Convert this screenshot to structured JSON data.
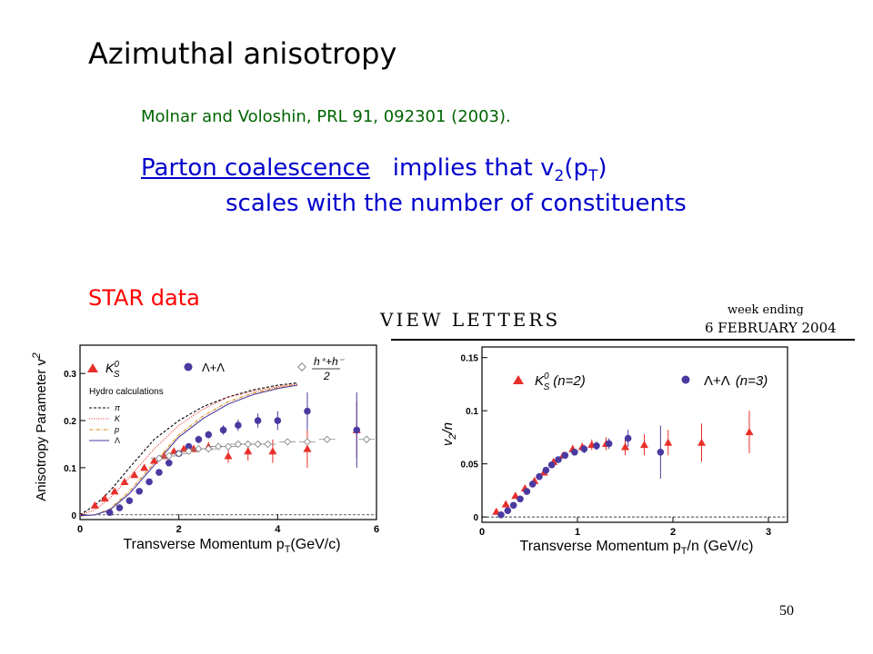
{
  "slide": {
    "title": "Azimuthal anisotropy",
    "reference": "Molnar and Voloshin, PRL 91, 092301 (2003).",
    "link_text": "Parton coalescence",
    "line1_rest": "implies that v",
    "sub_2": "2",
    "p_open": "(p",
    "sub_T": "T",
    "p_close": ")",
    "line2": "scales with the number of constituents",
    "star_label": "STAR data",
    "page_number": "50"
  },
  "journal_header": {
    "name": "VIEW LETTERS",
    "week_ending": "week ending",
    "date": "6 FEBRUARY 2004"
  },
  "colors": {
    "kaon": "#e8302a",
    "lambda": "#4a3aa0",
    "charged": "#888888",
    "title": "#000000",
    "reference": "#006400",
    "text_blue": "#0000cc",
    "star": "#ff0000"
  },
  "chart_data": [
    {
      "type": "scatter",
      "ylabel": "Anisotropy Parameter v",
      "ylabel_sub": "2",
      "xlabel": "Transverse Momentum p",
      "xlabel_sub": "T",
      "xlabel_unit": "(GeV/c)",
      "xlim": [
        0,
        6
      ],
      "ylim": [
        -0.01,
        0.36
      ],
      "xticks": [
        0,
        2,
        4,
        6
      ],
      "yticks": [
        0,
        0.1,
        0.2,
        0.3
      ],
      "ytick_labels": [
        "0",
        "0.1",
        "0.2",
        "0.3"
      ],
      "legend": {
        "kaon": "K",
        "kaon_sup": "0",
        "kaon_sub": "S",
        "lambda": "Λ+Λ",
        "charged": "h⁺+h⁻",
        "charged_den": "2",
        "hydro_title": "Hydro calculations",
        "hydro": [
          "π",
          "K",
          "p",
          "Λ"
        ]
      },
      "series": [
        {
          "name": "K0S",
          "marker": "triangle",
          "x": [
            0.3,
            0.5,
            0.7,
            0.9,
            1.1,
            1.3,
            1.5,
            1.7,
            1.9,
            2.1,
            2.3,
            2.6,
            3.0,
            3.4,
            3.9,
            4.6,
            5.6
          ],
          "y": [
            0.02,
            0.035,
            0.05,
            0.07,
            0.085,
            0.1,
            0.115,
            0.125,
            0.135,
            0.14,
            0.14,
            0.145,
            0.125,
            0.135,
            0.135,
            0.14,
            0.18
          ],
          "err": [
            0.004,
            0.004,
            0.004,
            0.005,
            0.005,
            0.005,
            0.005,
            0.006,
            0.006,
            0.007,
            0.008,
            0.01,
            0.015,
            0.02,
            0.025,
            0.04,
            0.06
          ]
        },
        {
          "name": "Lambda",
          "marker": "circle",
          "x": [
            0.6,
            0.8,
            1.0,
            1.2,
            1.4,
            1.6,
            1.8,
            2.0,
            2.2,
            2.4,
            2.6,
            2.9,
            3.2,
            3.6,
            4.0,
            4.6,
            5.6
          ],
          "y": [
            0.005,
            0.015,
            0.03,
            0.05,
            0.07,
            0.09,
            0.11,
            0.13,
            0.145,
            0.16,
            0.17,
            0.18,
            0.19,
            0.2,
            0.2,
            0.22,
            0.18
          ],
          "err": [
            0.004,
            0.004,
            0.004,
            0.005,
            0.005,
            0.005,
            0.006,
            0.006,
            0.007,
            0.008,
            0.008,
            0.01,
            0.012,
            0.015,
            0.02,
            0.04,
            0.08
          ]
        },
        {
          "name": "h++h-",
          "marker": "diamond",
          "x": [
            1.6,
            1.8,
            2.0,
            2.2,
            2.4,
            2.6,
            2.8,
            3.0,
            3.2,
            3.4,
            3.6,
            3.8,
            4.2,
            4.6,
            5.0,
            5.8
          ],
          "y": [
            0.12,
            0.125,
            0.13,
            0.135,
            0.14,
            0.14,
            0.145,
            0.145,
            0.15,
            0.15,
            0.15,
            0.15,
            0.155,
            0.155,
            0.16,
            0.16
          ],
          "err": [
            0.003,
            0.003,
            0.003,
            0.003,
            0.003,
            0.003,
            0.003,
            0.003,
            0.004,
            0.004,
            0.004,
            0.004,
            0.005,
            0.005,
            0.006,
            0.008
          ]
        }
      ],
      "hydro_curves": [
        {
          "name": "pi",
          "style": "black-dash",
          "x": [
            0,
            0.3,
            0.6,
            1.0,
            1.5,
            2.0,
            2.5,
            3.0,
            3.5,
            4.0,
            4.4
          ],
          "y": [
            0.0,
            0.02,
            0.05,
            0.1,
            0.16,
            0.2,
            0.23,
            0.25,
            0.265,
            0.275,
            0.28
          ]
        },
        {
          "name": "K",
          "style": "red-dot",
          "x": [
            0,
            0.3,
            0.6,
            1.0,
            1.5,
            2.0,
            2.5,
            3.0,
            3.5,
            4.0,
            4.4
          ],
          "y": [
            0.0,
            0.01,
            0.035,
            0.08,
            0.14,
            0.19,
            0.225,
            0.25,
            0.262,
            0.272,
            0.278
          ]
        },
        {
          "name": "p",
          "style": "orange-dashdot",
          "x": [
            0,
            0.3,
            0.6,
            1.0,
            1.5,
            2.0,
            2.5,
            3.0,
            3.5,
            4.0,
            4.4
          ],
          "y": [
            -0.002,
            0.0,
            0.012,
            0.05,
            0.11,
            0.17,
            0.21,
            0.24,
            0.258,
            0.27,
            0.276
          ]
        },
        {
          "name": "Lambda",
          "style": "blue-solid",
          "x": [
            0,
            0.3,
            0.6,
            1.0,
            1.5,
            2.0,
            2.5,
            3.0,
            3.5,
            4.0,
            4.4
          ],
          "y": [
            -0.002,
            0.0,
            0.01,
            0.045,
            0.105,
            0.165,
            0.205,
            0.235,
            0.255,
            0.268,
            0.275
          ]
        }
      ]
    },
    {
      "type": "scatter",
      "ylabel": "v",
      "ylabel_sub": "2",
      "ylabel_tail": "/n",
      "xlabel": "Transverse Momentum p",
      "xlabel_sub": "T",
      "xlabel_unit": "/n (GeV/c)",
      "xlim": [
        0,
        3.2
      ],
      "ylim": [
        -0.005,
        0.16
      ],
      "xticks": [
        0,
        1,
        2,
        3
      ],
      "yticks": [
        0,
        0.05,
        0.1,
        0.15
      ],
      "ytick_labels": [
        "0",
        "0.05",
        "0.1",
        "0.15"
      ],
      "legend": {
        "kaon": "K",
        "kaon_sup": "0",
        "kaon_sub": "S",
        "kaon_n": "(n=2)",
        "lambda": "Λ+Λ",
        "lambda_n": "(n=3)"
      },
      "series": [
        {
          "name": "K0S",
          "marker": "triangle",
          "x": [
            0.15,
            0.25,
            0.35,
            0.45,
            0.55,
            0.65,
            0.75,
            0.85,
            0.95,
            1.05,
            1.15,
            1.3,
            1.5,
            1.7,
            1.95,
            2.3,
            2.8
          ],
          "y": [
            0.005,
            0.012,
            0.02,
            0.027,
            0.034,
            0.042,
            0.052,
            0.058,
            0.064,
            0.066,
            0.068,
            0.069,
            0.066,
            0.068,
            0.07,
            0.07,
            0.08
          ],
          "err": [
            0.002,
            0.002,
            0.002,
            0.002,
            0.002,
            0.003,
            0.003,
            0.003,
            0.004,
            0.004,
            0.005,
            0.006,
            0.008,
            0.01,
            0.012,
            0.018,
            0.02
          ]
        },
        {
          "name": "Lambda",
          "marker": "circle",
          "x": [
            0.2,
            0.27,
            0.33,
            0.4,
            0.47,
            0.53,
            0.6,
            0.67,
            0.73,
            0.8,
            0.87,
            0.97,
            1.07,
            1.2,
            1.33,
            1.53,
            1.87
          ],
          "y": [
            0.002,
            0.006,
            0.011,
            0.017,
            0.024,
            0.031,
            0.038,
            0.044,
            0.049,
            0.054,
            0.058,
            0.061,
            0.064,
            0.067,
            0.069,
            0.074,
            0.061
          ],
          "err": [
            0.002,
            0.002,
            0.002,
            0.002,
            0.002,
            0.002,
            0.002,
            0.002,
            0.003,
            0.003,
            0.003,
            0.003,
            0.004,
            0.004,
            0.005,
            0.008,
            0.025
          ]
        }
      ]
    }
  ]
}
